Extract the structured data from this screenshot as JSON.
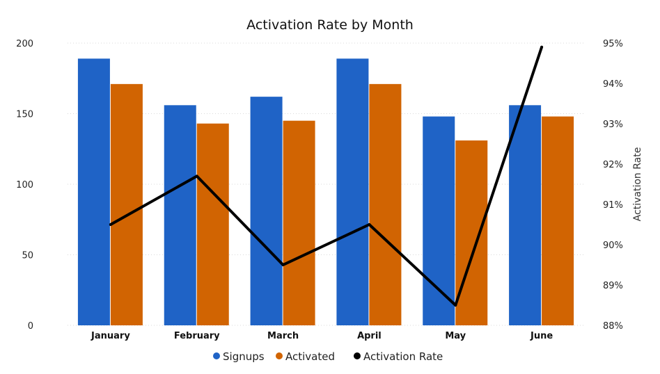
{
  "chart_data": {
    "type": "bar",
    "title": "Activation Rate by Month",
    "categories": [
      "January",
      "February",
      "March",
      "April",
      "May",
      "June"
    ],
    "series": [
      {
        "name": "Signups",
        "type": "bar",
        "axis": "left",
        "color": "#1f63c6",
        "values": [
          189,
          156,
          162,
          189,
          148,
          156
        ]
      },
      {
        "name": "Activated",
        "type": "bar",
        "axis": "left",
        "color": "#d16402",
        "values": [
          171,
          143,
          145,
          171,
          131,
          148
        ]
      },
      {
        "name": "Activation Rate",
        "type": "line",
        "axis": "right",
        "color": "#000000",
        "values": [
          0.905,
          0.917,
          0.895,
          0.905,
          0.885,
          0.949
        ]
      }
    ],
    "ylim": [
      0,
      200
    ],
    "yticks": [
      "0",
      "50",
      "100",
      "150",
      "200"
    ],
    "y2label": "Activation Rate",
    "y2lim": [
      0.88,
      0.95
    ],
    "y2ticks": [
      "88%",
      "89%",
      "90%",
      "91%",
      "92%",
      "93%",
      "94%",
      "95%"
    ],
    "grid": true,
    "legend_position": "bottom-center"
  }
}
